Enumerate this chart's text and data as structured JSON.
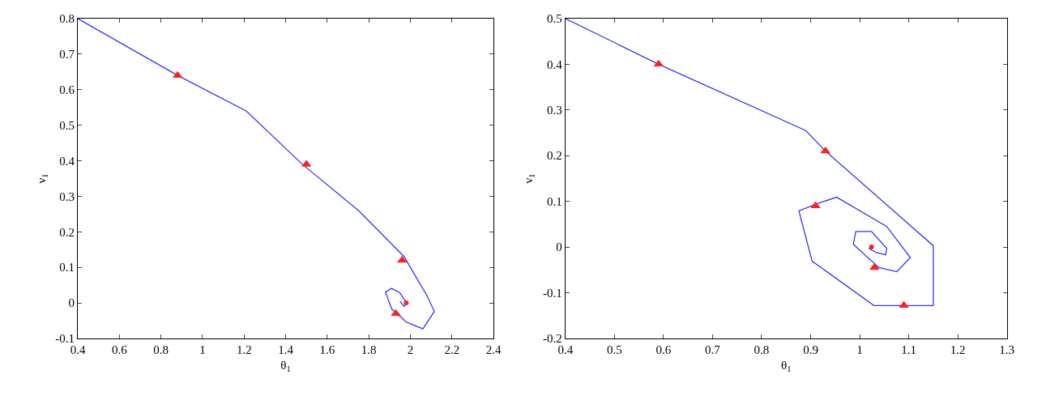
{
  "chart_data": [
    {
      "type": "line",
      "xlabel": "θ$_{1}$",
      "ylabel": "ν$_{1}$",
      "xlim": [
        0.4,
        2.4
      ],
      "ylim": [
        -0.1,
        0.8
      ],
      "xticks": [
        0.4,
        0.6,
        0.8,
        1,
        1.2,
        1.4,
        1.6,
        1.8,
        2,
        2.2,
        2.4
      ],
      "yticks": [
        -0.1,
        0,
        0.1,
        0.2,
        0.3,
        0.4,
        0.5,
        0.6,
        0.7,
        0.8
      ],
      "grid": false,
      "series": [
        {
          "color": "#3333ff",
          "x": [
            0.4,
            0.88,
            1.21,
            1.48,
            1.75,
            1.97,
            2.01,
            2.08,
            2.115,
            2.06,
            1.98,
            1.91,
            1.88,
            1.91,
            1.95,
            1.98,
            1.97,
            1.95
          ],
          "values": [
            0.8,
            0.64,
            0.54,
            0.39,
            0.26,
            0.13,
            0.09,
            0.02,
            -0.024,
            -0.073,
            -0.054,
            -0.017,
            0.03,
            0.041,
            0.028,
            0.0,
            -0.01,
            0.004
          ]
        },
        {
          "type": "scatter",
          "color": "#ff2020",
          "marker": "triangle",
          "x": [
            0.88,
            1.5,
            1.96,
            1.93
          ],
          "values": [
            0.64,
            0.39,
            0.12,
            -0.03
          ]
        },
        {
          "type": "scatter",
          "color": "#ff2020",
          "marker": "circle",
          "x": [
            1.98
          ],
          "values": [
            0.0
          ]
        }
      ]
    },
    {
      "type": "line",
      "xlabel": "θ$_{1}$",
      "ylabel": "ν$_{1}$",
      "xlim": [
        0.4,
        1.3
      ],
      "ylim": [
        -0.2,
        0.5
      ],
      "xticks": [
        0.4,
        0.5,
        0.6,
        0.7,
        0.8,
        0.9,
        1,
        1.1,
        1.2,
        1.3
      ],
      "yticks": [
        -0.2,
        -0.1,
        0,
        0.1,
        0.2,
        0.3,
        0.4,
        0.5
      ],
      "grid": false,
      "series": [
        {
          "color": "#3333ff",
          "x": [
            0.4,
            0.59,
            0.89,
            0.93,
            1.15,
            1.15,
            1.029,
            0.903,
            0.876,
            0.916,
            0.953,
            1.055,
            1.103,
            1.076,
            1.039,
            0.987,
            0.992,
            1.024,
            1.055,
            1.053,
            1.034,
            1.018
          ],
          "values": [
            0.5,
            0.4,
            0.255,
            0.21,
            0.003,
            -0.128,
            -0.128,
            -0.031,
            0.079,
            0.096,
            0.109,
            0.045,
            -0.023,
            -0.054,
            -0.045,
            0.006,
            0.034,
            0.034,
            -0.003,
            -0.017,
            -0.012,
            -0.003
          ]
        },
        {
          "type": "scatter",
          "color": "#ff2020",
          "marker": "triangle",
          "x": [
            0.59,
            0.93,
            0.91,
            1.03,
            1.09
          ],
          "values": [
            0.4,
            0.21,
            0.09,
            -0.045,
            -0.128
          ]
        },
        {
          "type": "scatter",
          "color": "#ff2020",
          "marker": "circle",
          "x": [
            1.024
          ],
          "values": [
            0.0
          ]
        }
      ]
    }
  ]
}
